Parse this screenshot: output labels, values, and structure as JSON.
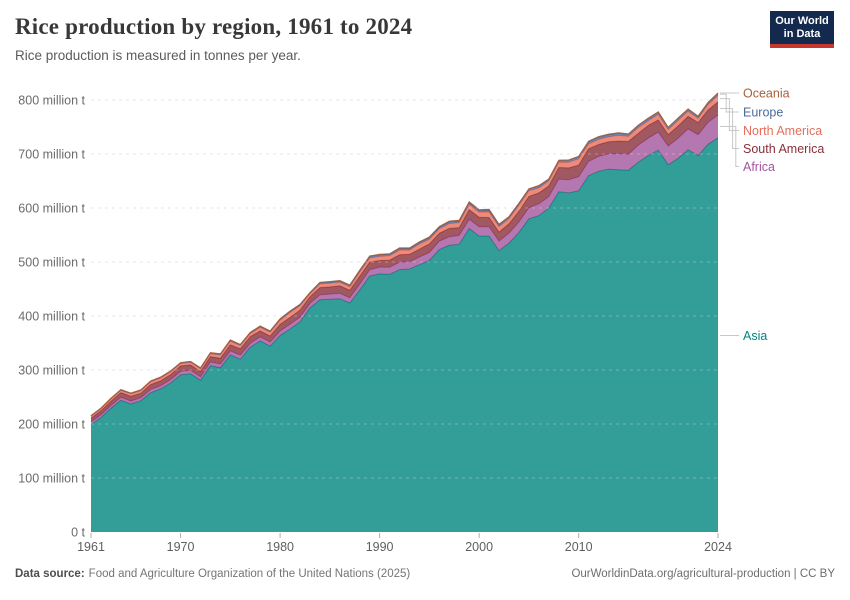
{
  "header": {
    "title": "Rice production by region, 1961 to 2024",
    "subtitle": "Rice production is measured in tonnes per year."
  },
  "logo": {
    "line1": "Our World",
    "line2": "in Data",
    "bg_color": "#14294E",
    "accent_color": "#C8372D"
  },
  "footer": {
    "source_label": "Data source:",
    "source_text": "Food and Agriculture Organization of the United Nations (2025)",
    "link_text": "OurWorldinData.org/agricultural-production | CC BY"
  },
  "chart_data": {
    "type": "area",
    "stacked": true,
    "unit": "million tonnes per year",
    "x_start": 1961,
    "x_end": 2024,
    "x_ticks": [
      1961,
      1970,
      1980,
      1990,
      2000,
      2010,
      2024
    ],
    "y_ticks": [
      {
        "value": 0,
        "label": "0 t"
      },
      {
        "value": 100,
        "label": "100 million t"
      },
      {
        "value": 200,
        "label": "200 million t"
      },
      {
        "value": 300,
        "label": "300 million t"
      },
      {
        "value": 400,
        "label": "400 million t"
      },
      {
        "value": 500,
        "label": "500 million t"
      },
      {
        "value": 600,
        "label": "600 million t"
      },
      {
        "value": 700,
        "label": "700 million t"
      },
      {
        "value": 800,
        "label": "800 million t"
      }
    ],
    "ylim": [
      0,
      820
    ],
    "grid": true,
    "legend_position": "right",
    "series": [
      {
        "name": "Asia",
        "color": "#00847E",
        "values": [
          199,
          212,
          229,
          244,
          237,
          243,
          258,
          265,
          276,
          291,
          293,
          281,
          308,
          304,
          328,
          320,
          342,
          354,
          344,
          364,
          376,
          389,
          415,
          430,
          431,
          432,
          424,
          448,
          474,
          478,
          477,
          486,
          487,
          495,
          503,
          523,
          531,
          533,
          562,
          548,
          548,
          521,
          535,
          555,
          580,
          586,
          600,
          630,
          628,
          632,
          660,
          668,
          672,
          671,
          670,
          685,
          697,
          707,
          680,
          692,
          708,
          697,
          718,
          730
        ]
      },
      {
        "name": "Africa",
        "color": "#A2559C",
        "values": [
          4.9,
          5.1,
          5.3,
          5.5,
          5.4,
          5.5,
          5.9,
          6.0,
          6.2,
          6.5,
          6.7,
          6.5,
          6.8,
          7.2,
          7.4,
          7.5,
          7.3,
          7.7,
          7.8,
          8.3,
          8.6,
          8.7,
          8.3,
          9.0,
          9.6,
          10.1,
          9.9,
          11.0,
          11.6,
          12.6,
          13.1,
          13.4,
          13.5,
          14.2,
          14.6,
          15.5,
          15.9,
          16.2,
          17.0,
          17.4,
          17.3,
          17.7,
          18.5,
          19.2,
          20.5,
          21.7,
          21.1,
          23.5,
          24.2,
          26.0,
          26.3,
          27.6,
          28.1,
          29.4,
          29.6,
          31.5,
          32.4,
          33.6,
          34.7,
          37.5,
          38.4,
          38.8,
          40.5,
          42.0
        ]
      },
      {
        "name": "South America",
        "color": "#883039",
        "values": [
          6.9,
          7.5,
          8.0,
          8.6,
          9.0,
          8.5,
          9.2,
          9.0,
          9.3,
          10.0,
          9.7,
          9.8,
          10.0,
          10.6,
          11.5,
          11.7,
          12.5,
          10.7,
          11.2,
          12.5,
          12.9,
          13.2,
          12.4,
          13.5,
          13.3,
          13.8,
          13.9,
          14.6,
          14.3,
          12.2,
          13.5,
          14.1,
          13.7,
          14.6,
          16.0,
          14.7,
          15.4,
          14.5,
          18.0,
          17.6,
          17.1,
          16.9,
          17.3,
          20.1,
          20.9,
          20.2,
          19.8,
          21.5,
          22.0,
          21.5,
          23.5,
          22.0,
          22.5,
          23.5,
          23.7,
          22.0,
          23.5,
          22.5,
          21.5,
          22.5,
          23.5,
          22.5,
          23.0,
          24.5
        ]
      },
      {
        "name": "North America",
        "color": "#E56E5A",
        "values": [
          3.3,
          3.6,
          3.8,
          4.0,
          4.3,
          4.5,
          4.9,
          5.2,
          4.9,
          4.3,
          4.6,
          4.8,
          5.1,
          6.0,
          6.5,
          6.1,
          5.5,
          6.8,
          6.8,
          7.5,
          9.0,
          8.0,
          5.4,
          7.0,
          6.6,
          6.6,
          6.4,
          7.7,
          7.5,
          7.6,
          7.8,
          8.6,
          7.8,
          9.5,
          8.5,
          8.3,
          8.9,
          9.2,
          10.0,
          9.4,
          10.2,
          9.9,
          9.6,
          11.0,
          10.5,
          9.4,
          9.3,
          9.7,
          10.5,
          11.7,
          8.9,
          9.5,
          9.0,
          10.5,
          9.2,
          10.7,
          8.7,
          10.4,
          8.9,
          10.6,
          9.1,
          7.7,
          10.0,
          12.0
        ]
      },
      {
        "name": "Europe",
        "color": "#4C6A9C",
        "values": [
          1.2,
          1.3,
          1.3,
          1.4,
          1.4,
          1.4,
          1.5,
          1.5,
          1.6,
          1.6,
          1.7,
          1.7,
          1.8,
          1.8,
          1.8,
          1.7,
          1.8,
          1.9,
          2.0,
          2.0,
          2.0,
          2.1,
          2.1,
          2.3,
          2.4,
          2.5,
          2.6,
          2.7,
          2.9,
          3.0,
          3.0,
          3.0,
          2.9,
          3.0,
          3.1,
          3.2,
          3.2,
          2.9,
          3.1,
          3.1,
          3.1,
          3.2,
          3.2,
          3.4,
          3.4,
          3.4,
          3.4,
          3.5,
          4.0,
          4.4,
          4.3,
          4.2,
          4.1,
          4.0,
          4.1,
          4.1,
          4.1,
          4.0,
          4.1,
          4.0,
          4.1,
          3.4,
          3.6,
          4.0
        ]
      },
      {
        "name": "Oceania",
        "color": "#A8603C",
        "values": [
          0.2,
          0.2,
          0.2,
          0.2,
          0.2,
          0.2,
          0.25,
          0.25,
          0.3,
          0.3,
          0.3,
          0.3,
          0.35,
          0.4,
          0.45,
          0.5,
          0.55,
          0.5,
          0.6,
          0.7,
          0.75,
          0.6,
          0.5,
          0.7,
          0.9,
          0.7,
          0.8,
          0.8,
          0.9,
          0.95,
          0.8,
          1.1,
          1.2,
          1.1,
          1.2,
          1.0,
          1.4,
          1.4,
          1.4,
          1.4,
          1.8,
          1.3,
          0.4,
          0.6,
          0.3,
          1.0,
          0.2,
          0.1,
          0.1,
          0.2,
          0.7,
          0.9,
          1.2,
          0.8,
          0.7,
          0.3,
          0.8,
          0.6,
          0.1,
          0.1,
          0.5,
          0.7,
          0.5,
          0.6
        ]
      }
    ],
    "legend": [
      {
        "label": "Oceania",
        "color": "#A8603C"
      },
      {
        "label": "Europe",
        "color": "#4C6A9C"
      },
      {
        "label": "North America",
        "color": "#E56E5A"
      },
      {
        "label": "South America",
        "color": "#883039"
      },
      {
        "label": "Africa",
        "color": "#A2559C"
      },
      {
        "label": "Asia",
        "color": "#00847E"
      }
    ]
  }
}
